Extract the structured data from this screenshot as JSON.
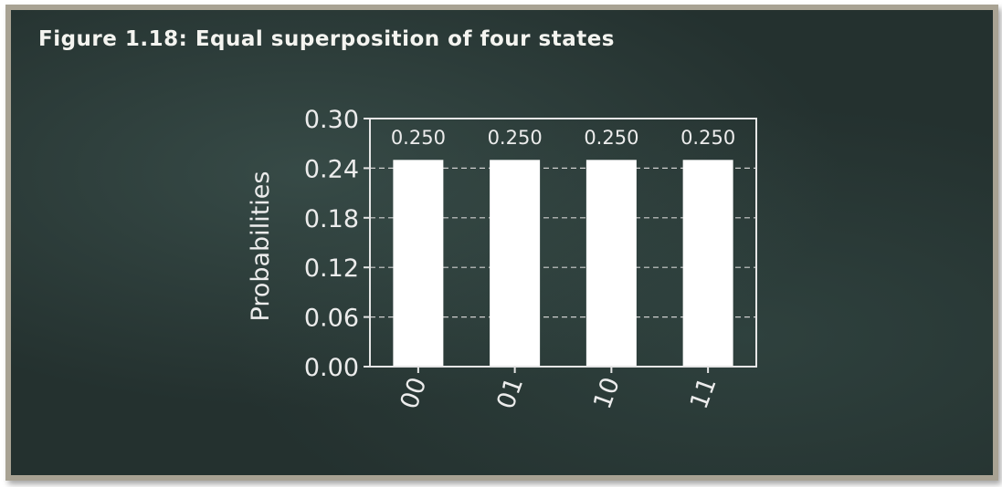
{
  "figure": {
    "title": "Figure 1.18: Equal superposition of four states"
  },
  "chart_data": {
    "type": "bar",
    "categories": [
      "00",
      "01",
      "10",
      "11"
    ],
    "values": [
      0.25,
      0.25,
      0.25,
      0.25
    ],
    "data_labels": [
      "0.250",
      "0.250",
      "0.250",
      "0.250"
    ],
    "title": "",
    "xlabel": "",
    "ylabel": "Probabilities",
    "ylim": [
      0,
      0.3
    ],
    "yticks": [
      "0.00",
      "0.06",
      "0.12",
      "0.18",
      "0.24",
      "0.30"
    ],
    "grid": true,
    "colors": {
      "bar": "#ffffff",
      "axis": "#e6e6e6",
      "grid": "#cfcfcf",
      "background": "#24312f"
    }
  }
}
